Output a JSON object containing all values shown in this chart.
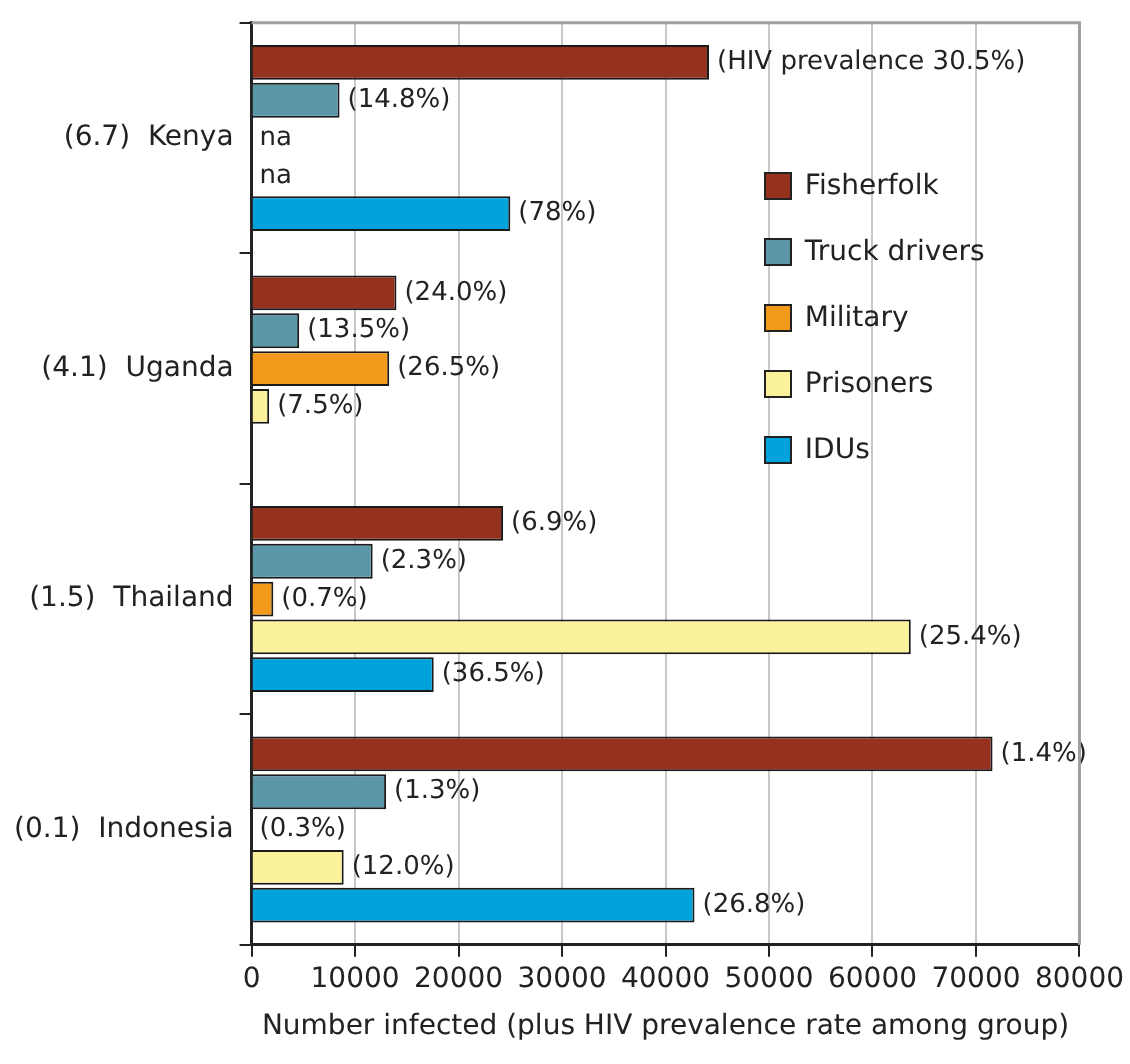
{
  "chart_data": {
    "type": "bar",
    "orientation": "horizontal",
    "xlabel": "Number infected (plus HIV prevalence rate among group)",
    "categories": [
      "(6.7)  Kenya",
      "(4.1)  Uganda",
      "(1.5)  Thailand",
      "(0.1)  Indonesia"
    ],
    "series": [
      {
        "name": "Fisherfolk",
        "color": "#94321f",
        "values": [
          44200,
          14000,
          24300,
          71600
        ]
      },
      {
        "name": "Truck drivers",
        "color": "#5b97a8",
        "values": [
          8500,
          4600,
          11700,
          13000
        ]
      },
      {
        "name": "Military",
        "color": "#f39a1d",
        "values": [
          null,
          13300,
          2100,
          null
        ]
      },
      {
        "name": "Prisoners",
        "color": "#fcf29c",
        "values": [
          null,
          1700,
          63700,
          8900
        ]
      },
      {
        "name": "IDUs",
        "color": "#00a2dc",
        "values": [
          25000,
          null,
          17600,
          42800
        ]
      }
    ],
    "annotations": [
      "(HIV prevalence 30.5%)",
      "(14.8%)",
      "na",
      "na",
      "(78%)",
      "(24.0%)",
      "(13.5%)",
      "(26.5%)",
      "(7.5%)",
      "(6.9%)",
      "(2.3%)",
      "(0.7%)",
      "(25.4%)",
      "(36.5%)",
      "(1.4%)",
      "(1.3%)",
      "(0.3%)",
      "(12.0%)",
      "(26.8%)"
    ],
    "xlim": [
      0,
      80000
    ],
    "xticks": [
      0,
      10000,
      20000,
      30000,
      40000,
      50000,
      60000,
      70000,
      80000
    ],
    "grid": "x",
    "legend": "top right"
  }
}
